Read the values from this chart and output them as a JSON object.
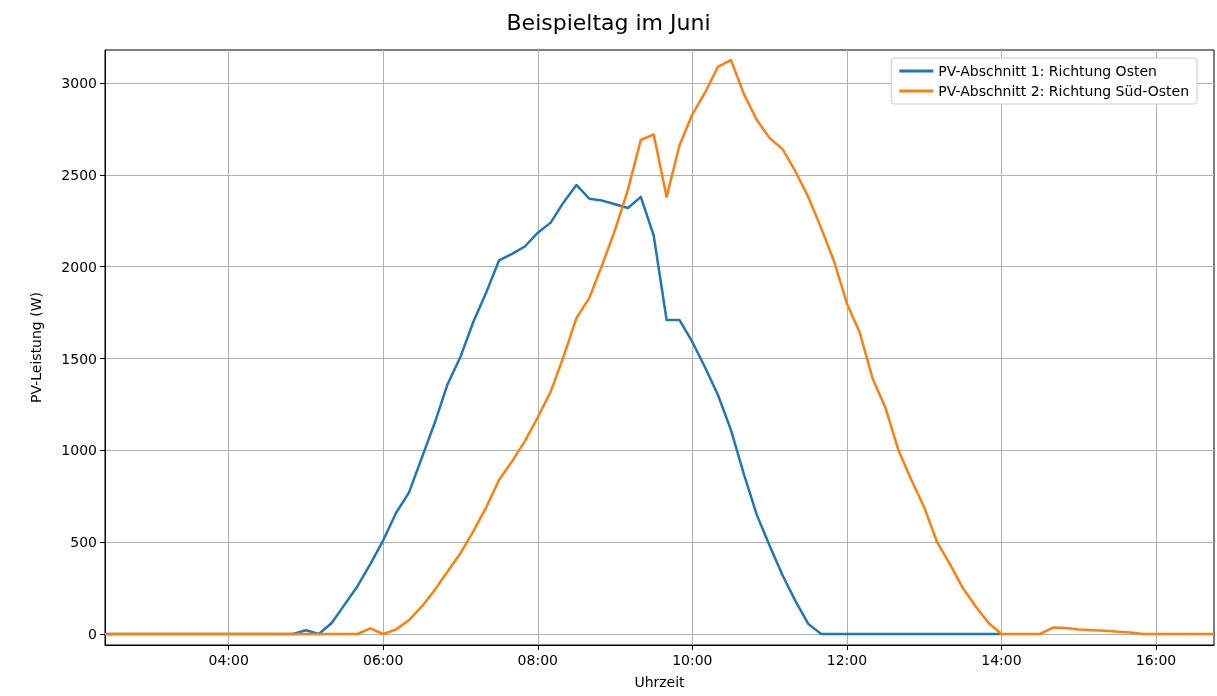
{
  "chart_data": {
    "type": "line",
    "title": "Beispieltag im Juni",
    "xlabel": "Uhrzeit",
    "ylabel": "PV-Leistung (W)",
    "xlim": [
      2.4,
      16.75
    ],
    "ylim": [
      -60,
      3180
    ],
    "xticks": [
      {
        "value": 4,
        "label": "04:00"
      },
      {
        "value": 6,
        "label": "06:00"
      },
      {
        "value": 8,
        "label": "08:00"
      },
      {
        "value": 10,
        "label": "10:00"
      },
      {
        "value": 12,
        "label": "12:00"
      },
      {
        "value": 14,
        "label": "14:00"
      },
      {
        "value": 16,
        "label": "16:00"
      }
    ],
    "yticks": [
      0,
      500,
      1000,
      1500,
      2000,
      2500,
      3000
    ],
    "grid": true,
    "legend": "top right",
    "line_style": "solid",
    "marker": "none",
    "series": [
      {
        "name": "PV-Abschnitt 1: Richtung Osten",
        "color": "#1f77b4",
        "x": [
          2.4,
          4.833,
          5.0,
          5.167,
          5.333,
          5.5,
          5.667,
          5.833,
          6.0,
          6.167,
          6.333,
          6.5,
          6.667,
          6.833,
          7.0,
          7.167,
          7.333,
          7.5,
          7.667,
          7.833,
          8.0,
          8.167,
          8.333,
          8.5,
          8.667,
          8.833,
          9.0,
          9.167,
          9.333,
          9.5,
          9.667,
          9.833,
          10.0,
          10.167,
          10.333,
          10.5,
          10.667,
          10.833,
          11.0,
          11.167,
          11.333,
          11.5,
          11.667,
          14.0
        ],
        "values": [
          0,
          0,
          20,
          0,
          60,
          160,
          260,
          380,
          510,
          660,
          770,
          960,
          1150,
          1360,
          1510,
          1700,
          1860,
          2035,
          2070,
          2110,
          2185,
          2240,
          2350,
          2445,
          2370,
          2360,
          2340,
          2320,
          2380,
          2170,
          1710,
          1710,
          1590,
          1450,
          1300,
          1110,
          870,
          650,
          480,
          320,
          180,
          55,
          0,
          0
        ]
      },
      {
        "name": "PV-Abschnitt 2: Richtung Süd-Osten",
        "color": "#ff7f0e",
        "x": [
          2.4,
          5.667,
          5.833,
          6.0,
          6.167,
          6.333,
          6.5,
          6.667,
          6.833,
          7.0,
          7.167,
          7.333,
          7.5,
          7.667,
          7.833,
          8.0,
          8.167,
          8.333,
          8.5,
          8.667,
          8.833,
          9.0,
          9.167,
          9.333,
          9.5,
          9.667,
          9.833,
          10.0,
          10.167,
          10.333,
          10.5,
          10.667,
          10.833,
          11.0,
          11.167,
          11.333,
          11.5,
          11.667,
          11.833,
          12.0,
          12.167,
          12.333,
          12.5,
          12.667,
          12.833,
          13.0,
          13.167,
          13.333,
          13.5,
          13.667,
          13.833,
          14.0,
          14.5,
          14.667,
          14.833,
          15.0,
          15.333,
          15.667,
          15.833,
          16.75
        ],
        "values": [
          0,
          0,
          30,
          0,
          25,
          75,
          150,
          240,
          340,
          440,
          560,
          690,
          840,
          940,
          1050,
          1180,
          1320,
          1510,
          1720,
          1830,
          2010,
          2200,
          2420,
          2690,
          2720,
          2380,
          2660,
          2830,
          2950,
          3090,
          3125,
          2940,
          2800,
          2700,
          2640,
          2520,
          2380,
          2210,
          2030,
          1800,
          1640,
          1390,
          1230,
          1000,
          840,
          690,
          500,
          380,
          250,
          150,
          60,
          0,
          0,
          35,
          32,
          25,
          18,
          8,
          0,
          0
        ]
      }
    ]
  }
}
